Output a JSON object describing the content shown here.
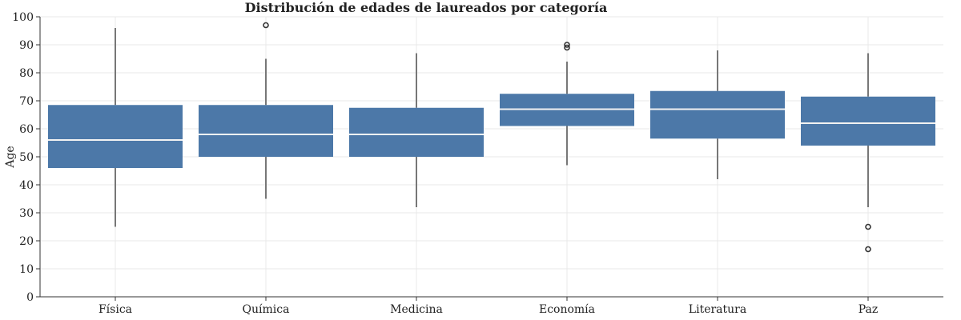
{
  "chart_data": {
    "type": "box",
    "title": "Distribución de edades de laureados por categoría",
    "xlabel": "",
    "ylabel": "Age",
    "ylim": [
      0,
      100
    ],
    "yticks": [
      0,
      10,
      20,
      30,
      40,
      50,
      60,
      70,
      80,
      90,
      100
    ],
    "grid": true,
    "box_color": "#4c78a8",
    "median_color": "#f2f2f2",
    "categories": [
      "Física",
      "Química",
      "Medicina",
      "Economía",
      "Literatura",
      "Paz"
    ],
    "boxes": [
      {
        "category": "Física",
        "whisker_low": 25,
        "q1": 46,
        "median": 56,
        "q3": 68.5,
        "whisker_high": 96,
        "outliers": []
      },
      {
        "category": "Química",
        "whisker_low": 35,
        "q1": 50,
        "median": 58,
        "q3": 68.5,
        "whisker_high": 85,
        "outliers": [
          97
        ]
      },
      {
        "category": "Medicina",
        "whisker_low": 32,
        "q1": 50,
        "median": 58,
        "q3": 67.5,
        "whisker_high": 87,
        "outliers": []
      },
      {
        "category": "Economía",
        "whisker_low": 47,
        "q1": 61,
        "median": 67,
        "q3": 72.5,
        "whisker_high": 84,
        "outliers": [
          89,
          90
        ]
      },
      {
        "category": "Literatura",
        "whisker_low": 42,
        "q1": 56.5,
        "median": 67,
        "q3": 73.5,
        "whisker_high": 88,
        "outliers": []
      },
      {
        "category": "Paz",
        "whisker_low": 32,
        "q1": 54,
        "median": 62,
        "q3": 71.5,
        "whisker_high": 87,
        "outliers": [
          25,
          17
        ]
      }
    ]
  }
}
